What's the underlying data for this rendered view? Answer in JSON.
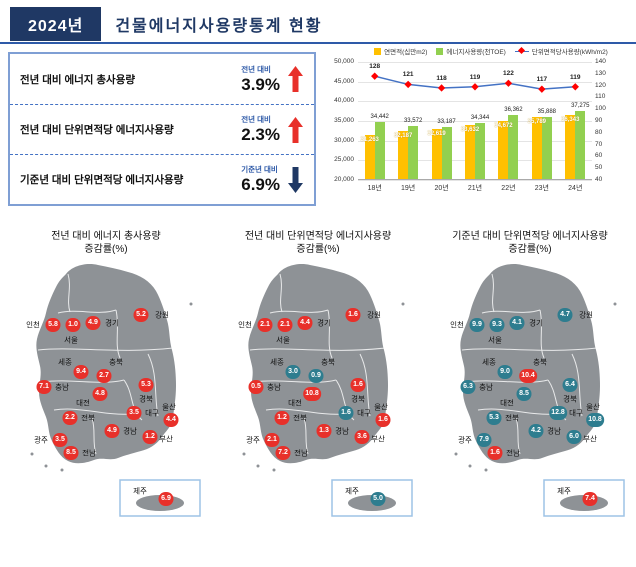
{
  "header": {
    "year_badge": "2024년",
    "title": "건물에너지사용량통계 현황"
  },
  "colors": {
    "navy": "#1F3864",
    "accent_blue": "#2E5AA8",
    "up_red": "#E8302A",
    "down_teal": "#2E7D8F",
    "bar_yellow": "#FFC000",
    "bar_green": "#92D050",
    "line_blue": "#4472C4",
    "marker_red": "#FF0000",
    "map_gray": "#8E9296"
  },
  "stats": {
    "rows": [
      {
        "label": "전년 대비 에너지 총사용량",
        "compare_label": "전년 대비",
        "value": "3.9%",
        "direction": "up"
      },
      {
        "label": "전년 대비 단위면적당 에너지사용량",
        "compare_label": "전년 대비",
        "value": "2.3%",
        "direction": "up"
      },
      {
        "label": "기준년 대비 단위면적당 에너지사용량",
        "compare_label": "기준년 대비",
        "value": "6.9%",
        "direction": "down"
      }
    ]
  },
  "chart_data": {
    "type": "bar",
    "categories": [
      "18년",
      "19년",
      "20년",
      "21년",
      "22년",
      "23년",
      "24년"
    ],
    "series": [
      {
        "name": "연면적(십만m2)",
        "type": "bar",
        "color": "#FFC000",
        "values": [
          31263,
          32187,
          32619,
          33632,
          34672,
          35789,
          36343
        ]
      },
      {
        "name": "에너지사용량(천TOE)",
        "type": "bar",
        "color": "#92D050",
        "values": [
          34442,
          33572,
          33187,
          34344,
          36362,
          35888,
          37275
        ]
      },
      {
        "name": "단위면적당사용량(kWh/m2)",
        "type": "line",
        "color": "#4472C4",
        "marker_color": "#FF0000",
        "values": [
          128,
          121,
          118,
          119,
          122,
          117,
          119
        ]
      }
    ],
    "left_axis": {
      "min": 20000,
      "max": 50000,
      "ticks": [
        "50,000",
        "45,000",
        "40,000",
        "35,000",
        "30,000",
        "25,000",
        "20,000"
      ]
    },
    "right_axis": {
      "min": 40,
      "max": 140,
      "ticks": [
        "140",
        "130",
        "120",
        "110",
        "100",
        "90",
        "80",
        "70",
        "60",
        "50",
        "40"
      ]
    },
    "legend_position": "top",
    "grid": true
  },
  "maps": [
    {
      "title_line1": "전년 대비 에너지 총사용량",
      "title_line2": "증감률(%)",
      "regions": [
        {
          "name": "인천",
          "value": "5.8",
          "trend": "up"
        },
        {
          "name": "서울",
          "value": "1.0",
          "trend": "up"
        },
        {
          "name": "경기",
          "value": "4.9",
          "trend": "up"
        },
        {
          "name": "강원",
          "value": "5.2",
          "trend": "up"
        },
        {
          "name": "세종",
          "value": "9.4",
          "trend": "up"
        },
        {
          "name": "충북",
          "value": "2.7",
          "trend": "up"
        },
        {
          "name": "충남",
          "value": "7.1",
          "trend": "up"
        },
        {
          "name": "대전",
          "value": "4.8",
          "trend": "up"
        },
        {
          "name": "경북",
          "value": "5.3",
          "trend": "up"
        },
        {
          "name": "전북",
          "value": "2.2",
          "trend": "up"
        },
        {
          "name": "대구",
          "value": "3.5",
          "trend": "up"
        },
        {
          "name": "울산",
          "value": "4.4",
          "trend": "up"
        },
        {
          "name": "경남",
          "value": "4.9",
          "trend": "up"
        },
        {
          "name": "부산",
          "value": "1.2",
          "trend": "up"
        },
        {
          "name": "광주",
          "value": "3.5",
          "trend": "up"
        },
        {
          "name": "전남",
          "value": "8.5",
          "trend": "up"
        },
        {
          "name": "제주",
          "value": "6.9",
          "trend": "up"
        }
      ]
    },
    {
      "title_line1": "전년 대비 단위면적당 에너지사용량",
      "title_line2": "증감률(%)",
      "regions": [
        {
          "name": "인천",
          "value": "2.1",
          "trend": "up"
        },
        {
          "name": "서울",
          "value": "2.1",
          "trend": "up"
        },
        {
          "name": "경기",
          "value": "4.4",
          "trend": "up"
        },
        {
          "name": "강원",
          "value": "1.6",
          "trend": "up"
        },
        {
          "name": "세종",
          "value": "3.0",
          "trend": "down"
        },
        {
          "name": "충북",
          "value": "0.9",
          "trend": "down"
        },
        {
          "name": "충남",
          "value": "0.5",
          "trend": "up"
        },
        {
          "name": "대전",
          "value": "10.8",
          "trend": "up"
        },
        {
          "name": "경북",
          "value": "1.6",
          "trend": "up"
        },
        {
          "name": "전북",
          "value": "1.2",
          "trend": "up"
        },
        {
          "name": "대구",
          "value": "1.6",
          "trend": "down"
        },
        {
          "name": "울산",
          "value": "1.6",
          "trend": "up"
        },
        {
          "name": "경남",
          "value": "1.3",
          "trend": "up"
        },
        {
          "name": "부산",
          "value": "3.6",
          "trend": "up"
        },
        {
          "name": "광주",
          "value": "2.1",
          "trend": "up"
        },
        {
          "name": "전남",
          "value": "7.2",
          "trend": "up"
        },
        {
          "name": "제주",
          "value": "5.0",
          "trend": "down"
        }
      ]
    },
    {
      "title_line1": "기준년 대비 단위면적당 에너지사용량",
      "title_line2": "증감률(%)",
      "regions": [
        {
          "name": "인천",
          "value": "9.9",
          "trend": "down"
        },
        {
          "name": "서울",
          "value": "9.3",
          "trend": "down"
        },
        {
          "name": "경기",
          "value": "4.1",
          "trend": "down"
        },
        {
          "name": "강원",
          "value": "4.7",
          "trend": "down"
        },
        {
          "name": "세종",
          "value": "9.0",
          "trend": "down"
        },
        {
          "name": "충북",
          "value": "10.4",
          "trend": "up"
        },
        {
          "name": "충남",
          "value": "6.3",
          "trend": "down"
        },
        {
          "name": "대전",
          "value": "8.5",
          "trend": "down"
        },
        {
          "name": "경북",
          "value": "6.4",
          "trend": "down"
        },
        {
          "name": "전북",
          "value": "5.3",
          "trend": "down"
        },
        {
          "name": "대구",
          "value": "12.8",
          "trend": "down"
        },
        {
          "name": "울산",
          "value": "10.8",
          "trend": "down"
        },
        {
          "name": "경남",
          "value": "4.2",
          "trend": "down"
        },
        {
          "name": "부산",
          "value": "6.0",
          "trend": "down"
        },
        {
          "name": "광주",
          "value": "7.9",
          "trend": "down"
        },
        {
          "name": "전남",
          "value": "1.6",
          "trend": "up"
        },
        {
          "name": "제주",
          "value": "7.4",
          "trend": "up"
        }
      ]
    }
  ]
}
